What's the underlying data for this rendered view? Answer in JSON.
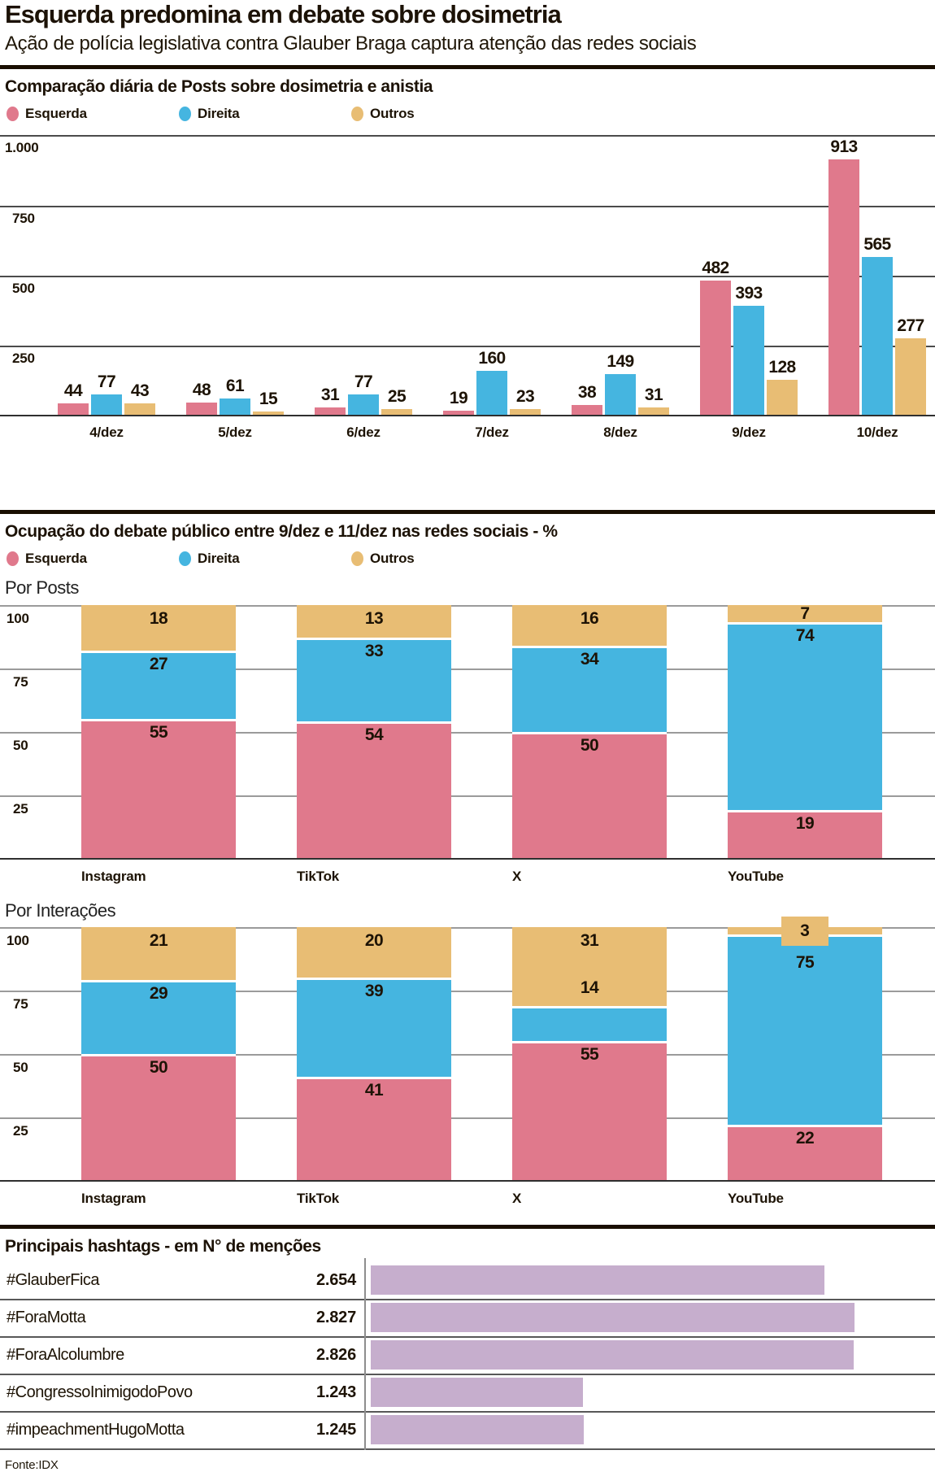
{
  "header": {
    "title": "Esquerda predomina em debate sobre dosimetria",
    "subtitle": "Ação de polícia legislativa contra Glauber Braga captura atenção das redes sociais"
  },
  "section2": {
    "title": "Ocupação do debate público  entre 9/dez e 11/dez nas redes sociais - %"
  },
  "legend": [
    {
      "label": "Esquerda",
      "color": "#e0798c"
    },
    {
      "label": "Direita",
      "color": "#45b5e0"
    },
    {
      "label": "Outros",
      "color": "#e8bd74"
    }
  ],
  "colors": {
    "esquerda": "#e0798c",
    "direita": "#45b5e0",
    "outros": "#e8bd74",
    "hashtag_bar": "#c6aecd"
  },
  "chart_data": [
    {
      "id": "daily-posts",
      "type": "bar",
      "title": "Comparação diária de Posts sobre dosimetria e anistia",
      "categories": [
        "4/dez",
        "5/dez",
        "6/dez",
        "7/dez",
        "8/dez",
        "9/dez",
        "10/dez"
      ],
      "series": [
        {
          "name": "Esquerda",
          "values": [
            44,
            48,
            31,
            19,
            38,
            482,
            913
          ]
        },
        {
          "name": "Direita",
          "values": [
            77,
            61,
            77,
            160,
            149,
            393,
            565
          ]
        },
        {
          "name": "Outros",
          "values": [
            43,
            15,
            25,
            23,
            31,
            128,
            277
          ]
        }
      ],
      "ylim": [
        0,
        1000
      ],
      "yticks": [
        1000,
        750,
        500,
        250
      ],
      "ytick_labels": [
        "1.000",
        "750",
        "500",
        "250"
      ],
      "grid": true,
      "legend_position": "top"
    },
    {
      "id": "share-posts",
      "type": "stacked-bar",
      "title": "Por Posts",
      "categories": [
        "Instagram",
        "TikTok",
        "X",
        "YouTube"
      ],
      "series": [
        {
          "name": "Esquerda",
          "values": [
            55,
            54,
            50,
            19
          ]
        },
        {
          "name": "Direita",
          "values": [
            27,
            33,
            34,
            74
          ]
        },
        {
          "name": "Outros",
          "values": [
            18,
            13,
            16,
            7
          ]
        }
      ],
      "ylim": [
        0,
        100
      ],
      "yticks": [
        100,
        75,
        50,
        25
      ],
      "ytick_labels": [
        "100",
        "75",
        "50",
        "25"
      ],
      "grid": true
    },
    {
      "id": "share-interactions",
      "type": "stacked-bar",
      "title": "Por Interações",
      "categories": [
        "Instagram",
        "TikTok",
        "X",
        "YouTube"
      ],
      "series": [
        {
          "name": "Esquerda",
          "values": [
            50,
            41,
            55,
            22
          ]
        },
        {
          "name": "Direita",
          "values": [
            29,
            39,
            14,
            75
          ]
        },
        {
          "name": "Outros",
          "values": [
            21,
            20,
            31,
            3
          ]
        }
      ],
      "ylim": [
        0,
        100
      ],
      "yticks": [
        100,
        75,
        50,
        25
      ],
      "ytick_labels": [
        "100",
        "75",
        "50",
        "25"
      ],
      "grid": true,
      "label_overrides": [
        {
          "category": "X",
          "series": "Direita",
          "dy": -39
        },
        {
          "category": "YouTube",
          "series": "Direita",
          "dy": 18
        },
        {
          "category": "YouTube",
          "series": "Outros",
          "chip": true
        }
      ]
    },
    {
      "id": "hashtags",
      "type": "bar-horizontal",
      "title": "Principais hashtags - em N° de menções",
      "categories": [
        "#GlauberFica",
        "#ForaMotta",
        "#ForaAlcolumbre",
        "#CongressoInimigodoPovo",
        "#impeachmentHugoMotta"
      ],
      "values": [
        2654,
        2827,
        2826,
        1243,
        1245
      ],
      "value_labels": [
        "2.654",
        "2.827",
        "2.826",
        "1.243",
        "1.245"
      ],
      "xmax": 3300
    }
  ],
  "footer": {
    "source": "Fonte:IDX"
  }
}
